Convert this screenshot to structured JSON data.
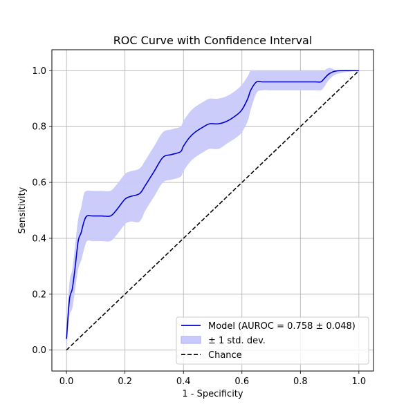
{
  "chart_data": {
    "type": "line",
    "title": "ROC Curve with Confidence Interval",
    "xlabel": "1 - Specificity",
    "ylabel": "Sensitivity",
    "xlim": [
      -0.05,
      1.05
    ],
    "ylim": [
      -0.075,
      1.075
    ],
    "xticks": [
      0.0,
      0.2,
      0.4,
      0.6,
      0.8,
      1.0
    ],
    "yticks": [
      0.0,
      0.2,
      0.4,
      0.6,
      0.8,
      1.0
    ],
    "xtick_labels": [
      "0.0",
      "0.2",
      "0.4",
      "0.6",
      "0.8",
      "1.0"
    ],
    "ytick_labels": [
      "0.0",
      "0.2",
      "0.4",
      "0.6",
      "0.8",
      "1.0"
    ],
    "grid": true,
    "legend_position": "bottom-right",
    "series": [
      {
        "name": "Model (AUROC = 0.758 ± 0.048)",
        "style": "solid",
        "color": "#0000cc",
        "x": [
          0.0,
          0.01,
          0.02,
          0.03,
          0.04,
          0.05,
          0.06,
          0.07,
          0.09,
          0.12,
          0.15,
          0.17,
          0.2,
          0.22,
          0.25,
          0.27,
          0.3,
          0.33,
          0.36,
          0.39,
          0.4,
          0.42,
          0.44,
          0.47,
          0.49,
          0.52,
          0.55,
          0.58,
          0.6,
          0.62,
          0.63,
          0.65,
          0.67,
          0.7,
          0.75,
          0.8,
          0.85,
          0.87,
          0.88,
          0.9,
          0.93,
          1.0
        ],
        "y": [
          0.04,
          0.18,
          0.22,
          0.3,
          0.39,
          0.42,
          0.46,
          0.48,
          0.48,
          0.48,
          0.48,
          0.5,
          0.54,
          0.55,
          0.56,
          0.59,
          0.64,
          0.69,
          0.7,
          0.71,
          0.73,
          0.76,
          0.78,
          0.8,
          0.81,
          0.81,
          0.82,
          0.84,
          0.86,
          0.9,
          0.93,
          0.96,
          0.96,
          0.96,
          0.96,
          0.96,
          0.96,
          0.96,
          0.97,
          0.99,
          1.0,
          1.0
        ]
      },
      {
        "name": "± 1 std. dev.",
        "style": "band",
        "color": "#c9c9fb",
        "x": [
          0.0,
          0.01,
          0.02,
          0.03,
          0.04,
          0.05,
          0.06,
          0.07,
          0.09,
          0.12,
          0.15,
          0.17,
          0.2,
          0.22,
          0.25,
          0.27,
          0.3,
          0.33,
          0.36,
          0.39,
          0.4,
          0.42,
          0.44,
          0.47,
          0.49,
          0.52,
          0.55,
          0.58,
          0.6,
          0.62,
          0.63,
          0.65,
          0.67,
          0.7,
          0.75,
          0.8,
          0.85,
          0.87,
          0.88,
          0.9,
          0.93,
          1.0
        ],
        "lower": [
          0.0,
          0.12,
          0.15,
          0.22,
          0.29,
          0.32,
          0.36,
          0.39,
          0.39,
          0.39,
          0.39,
          0.41,
          0.45,
          0.46,
          0.46,
          0.5,
          0.55,
          0.6,
          0.61,
          0.62,
          0.64,
          0.67,
          0.69,
          0.71,
          0.72,
          0.72,
          0.74,
          0.76,
          0.78,
          0.82,
          0.86,
          0.92,
          0.93,
          0.93,
          0.93,
          0.93,
          0.93,
          0.93,
          0.94,
          0.97,
          0.99,
          1.0
        ],
        "upper": [
          0.08,
          0.24,
          0.29,
          0.38,
          0.47,
          0.51,
          0.56,
          0.57,
          0.57,
          0.57,
          0.57,
          0.59,
          0.63,
          0.64,
          0.65,
          0.68,
          0.73,
          0.78,
          0.79,
          0.8,
          0.82,
          0.85,
          0.87,
          0.89,
          0.9,
          0.9,
          0.91,
          0.93,
          0.95,
          0.98,
          1.0,
          1.0,
          1.0,
          1.0,
          1.0,
          1.0,
          1.0,
          1.0,
          1.0,
          1.01,
          1.0,
          1.0
        ]
      },
      {
        "name": "Chance",
        "style": "dashed",
        "color": "#000000",
        "x": [
          0.0,
          1.0
        ],
        "y": [
          0.0,
          1.0
        ]
      }
    ]
  }
}
